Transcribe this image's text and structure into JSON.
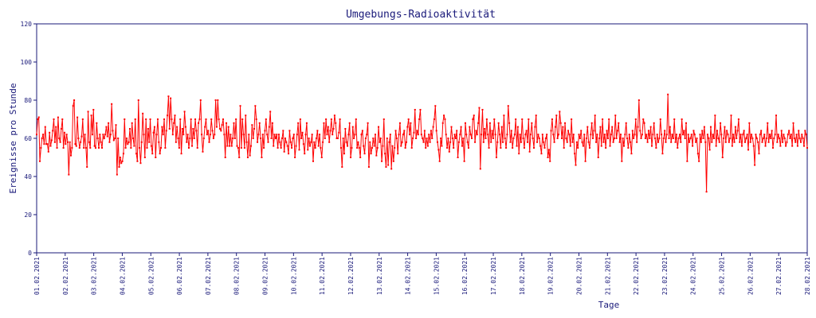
{
  "chart_data": {
    "type": "line",
    "title": "Umgebungs-Radioaktivität",
    "xlabel": "Tage",
    "ylabel": "Ereignisse pro Stunde",
    "ylim": [
      0,
      120
    ],
    "yticks": [
      0,
      20,
      40,
      60,
      80,
      100,
      120
    ],
    "xlim": [
      "01.02.2021",
      "28.02.2021"
    ],
    "xticks": [
      "01.02.2021",
      "02.02.2021",
      "03.02.2021",
      "04.02.2021",
      "05.02.2021",
      "06.02.2021",
      "07.02.2021",
      "08.02.2021",
      "09.02.2021",
      "10.02.2021",
      "11.02.2021",
      "12.02.2021",
      "13.02.2021",
      "14.02.2021",
      "15.02.2021",
      "16.02.2021",
      "17.02.2021",
      "18.02.2021",
      "19.02.2021",
      "20.02.2021",
      "21.02.2021",
      "22.02.2021",
      "23.02.2021",
      "24.02.2021",
      "25.02.2021",
      "26.02.2021",
      "27.02.2021",
      "28.02.2021"
    ],
    "grid": false,
    "legend": "none",
    "series": [
      {
        "color": "#ff0000",
        "x_start": "01.02.2021",
        "x_end": "28.02.2021",
        "values": [
          62,
          70,
          71,
          48,
          55,
          60,
          62,
          57,
          66,
          57,
          57,
          53,
          63,
          56,
          59,
          64,
          70,
          58,
          66,
          55,
          71,
          60,
          58,
          65,
          70,
          55,
          63,
          57,
          62,
          58,
          41,
          58,
          51,
          55,
          77,
          80,
          57,
          56,
          71,
          60,
          55,
          58,
          61,
          70,
          55,
          62,
          55,
          45,
          74,
          58,
          55,
          72,
          62,
          75,
          56,
          55,
          68,
          60,
          55,
          62,
          58,
          55,
          62,
          60,
          62,
          66,
          61,
          68,
          58,
          62,
          78,
          64,
          59,
          60,
          67,
          41,
          60,
          45,
          50,
          47,
          48,
          52,
          70,
          55,
          60,
          57,
          58,
          65,
          55,
          68,
          60,
          56,
          70,
          52,
          48,
          80,
          55,
          47,
          58,
          73,
          62,
          50,
          70,
          55,
          65,
          58,
          70,
          56,
          52,
          63,
          66,
          50,
          62,
          70,
          58,
          52,
          55,
          66,
          62,
          70,
          55,
          64,
          72,
          82,
          65,
          81,
          70,
          62,
          68,
          72,
          58,
          66,
          60,
          55,
          70,
          52,
          65,
          62,
          74,
          66,
          58,
          62,
          55,
          60,
          70,
          56,
          65,
          60,
          70,
          64,
          55,
          68,
          70,
          80,
          62,
          53,
          60,
          66,
          70,
          62,
          64,
          58,
          62,
          70,
          64,
          60,
          62,
          80,
          66,
          80,
          70,
          65,
          64,
          67,
          70,
          62,
          50,
          68,
          56,
          66,
          56,
          62,
          56,
          60,
          68,
          60,
          70,
          56,
          55,
          50,
          77,
          55,
          70,
          62,
          55,
          72,
          58,
          50,
          62,
          51,
          56,
          67,
          60,
          65,
          77,
          70,
          58,
          62,
          68,
          60,
          50,
          62,
          55,
          64,
          70,
          62,
          58,
          66,
          74,
          60,
          68,
          56,
          62,
          60,
          62,
          55,
          62,
          58,
          55,
          60,
          64,
          53,
          60,
          58,
          56,
          52,
          64,
          58,
          55,
          60,
          62,
          50,
          56,
          62,
          68,
          54,
          70,
          60,
          63,
          57,
          52,
          62,
          68,
          54,
          60,
          56,
          58,
          62,
          48,
          58,
          55,
          60,
          64,
          56,
          62,
          55,
          50,
          58,
          68,
          60,
          70,
          62,
          66,
          58,
          64,
          70,
          62,
          65,
          72,
          68,
          60,
          60,
          63,
          70,
          55,
          45,
          60,
          52,
          65,
          58,
          56,
          62,
          68,
          50,
          55,
          66,
          60,
          62,
          70,
          55,
          58,
          55,
          50,
          62,
          64,
          56,
          52,
          60,
          62,
          68,
          45,
          58,
          52,
          55,
          60,
          56,
          62,
          51,
          55,
          66,
          58,
          60,
          48,
          56,
          70,
          52,
          45,
          60,
          46,
          58,
          62,
          44,
          56,
          48,
          55,
          64,
          60,
          52,
          62,
          68,
          56,
          58,
          62,
          64,
          55,
          58,
          66,
          70,
          62,
          68,
          55,
          60,
          63,
          75,
          60,
          64,
          62,
          70,
          75,
          62,
          60,
          58,
          64,
          55,
          60,
          56,
          62,
          58,
          64,
          60,
          66,
          70,
          77,
          64,
          58,
          54,
          48,
          60,
          56,
          68,
          72,
          70,
          62,
          55,
          60,
          53,
          58,
          66,
          60,
          55,
          62,
          60,
          64,
          50,
          58,
          62,
          66,
          56,
          60,
          48,
          68,
          62,
          58,
          55,
          66,
          62,
          60,
          70,
          72,
          58,
          64,
          62,
          68,
          76,
          44,
          62,
          75,
          58,
          65,
          60,
          70,
          62,
          55,
          68,
          58,
          64,
          60,
          70,
          62,
          50,
          58,
          68,
          62,
          55,
          66,
          58,
          72,
          60,
          55,
          62,
          77,
          68,
          58,
          64,
          55,
          60,
          62,
          70,
          56,
          66,
          52,
          62,
          58,
          70,
          60,
          55,
          62,
          64,
          58,
          70,
          53,
          62,
          68,
          60,
          55,
          66,
          72,
          58,
          62,
          60,
          56,
          52,
          62,
          58,
          55,
          60,
          62,
          50,
          54,
          48,
          64,
          70,
          62,
          58,
          66,
          72,
          60,
          62,
          74,
          68,
          60,
          66,
          55,
          68,
          60,
          58,
          64,
          62,
          56,
          70,
          58,
          62,
          52,
          46,
          58,
          55,
          62,
          60,
          64,
          58,
          56,
          62,
          48,
          60,
          66,
          58,
          55,
          62,
          68,
          60,
          64,
          72,
          58,
          62,
          50,
          60,
          66,
          56,
          70,
          58,
          62,
          55,
          64,
          60,
          70,
          56,
          62,
          66,
          58,
          60,
          72,
          60,
          64,
          68,
          58,
          62,
          48,
          60,
          56,
          62,
          68,
          60,
          55,
          62,
          58,
          52,
          64,
          60,
          62,
          70,
          58,
          66,
          80,
          64,
          60,
          62,
          70,
          68,
          60,
          62,
          58,
          64,
          60,
          66,
          56,
          62,
          68,
          60,
          55,
          62,
          58,
          60,
          70,
          62,
          52,
          60,
          64,
          58,
          62,
          83,
          60,
          66,
          58,
          62,
          60,
          70,
          58,
          62,
          55,
          60,
          62,
          58,
          70,
          62,
          64,
          60,
          68,
          48,
          62,
          58,
          60,
          62,
          56,
          64,
          62,
          58,
          60,
          52,
          48,
          62,
          58,
          64,
          60,
          66,
          58,
          32,
          62,
          60,
          54,
          66,
          58,
          62,
          60,
          72,
          56,
          64,
          60,
          58,
          68,
          62,
          50,
          60,
          66,
          58,
          64,
          62,
          58,
          60,
          72,
          56,
          62,
          58,
          66,
          60,
          64,
          70,
          58,
          62,
          56,
          62,
          64,
          58,
          60,
          62,
          54,
          68,
          58,
          62,
          60,
          56,
          46,
          62,
          60,
          58,
          52,
          62,
          64,
          58,
          60,
          62,
          56,
          60,
          68,
          58,
          62,
          60,
          64,
          55,
          60,
          62,
          72,
          58,
          62,
          60,
          56,
          64,
          58,
          62,
          60,
          56,
          58,
          62,
          64,
          60,
          62,
          56,
          68,
          60,
          58,
          62,
          56,
          64,
          60,
          58,
          62,
          60,
          56,
          64,
          62,
          55
        ]
      }
    ]
  }
}
